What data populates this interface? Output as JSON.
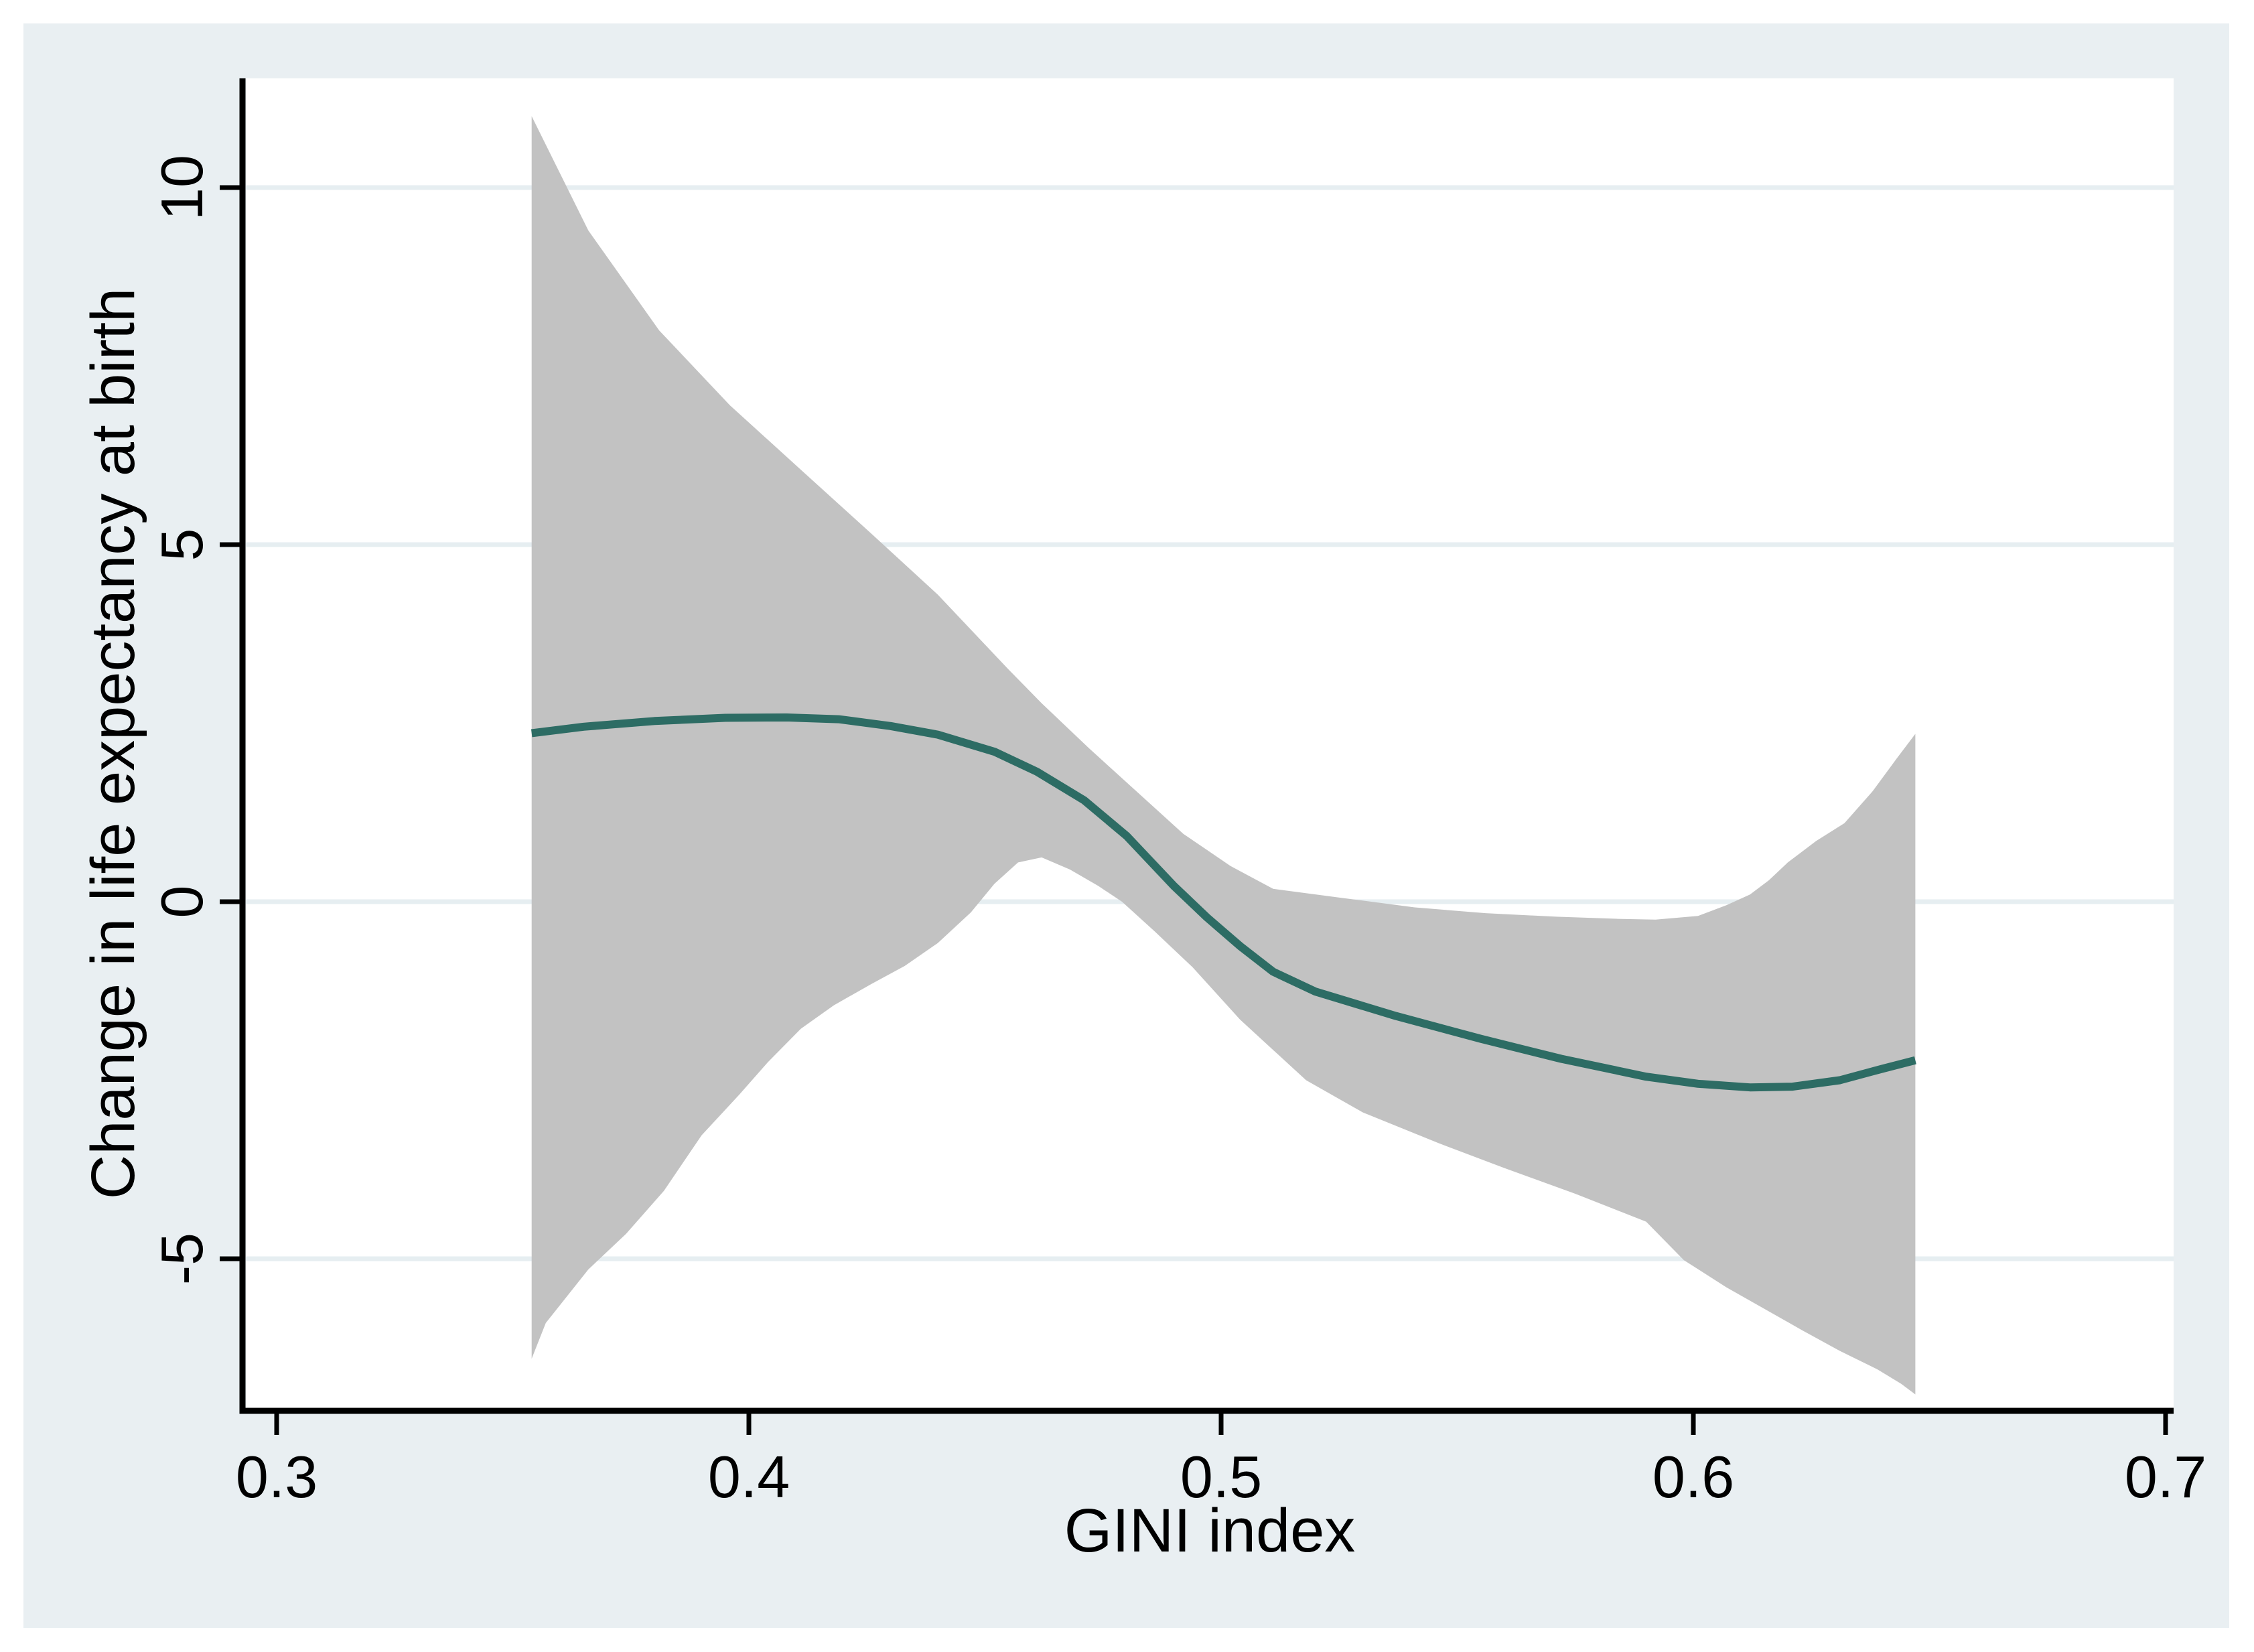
{
  "window": {
    "title": "Stata graph - lpoly smooth plot"
  },
  "colors": {
    "figure_background": "#e9eff2",
    "plot_background": "#ffffff",
    "gridline": "#e6eef1",
    "band_fill": "#c2c2c2",
    "line_stroke": "#2d6c64",
    "axis_stroke": "#000000",
    "text": "#000000"
  },
  "axes": {
    "x": {
      "title": "GINI index",
      "ticks": [
        0.3,
        0.4,
        0.5,
        0.6,
        0.7
      ],
      "tick_labels": [
        "0.3",
        "0.4",
        "0.5",
        "0.6",
        "0.7"
      ],
      "range": [
        0.2935,
        0.7017
      ]
    },
    "y": {
      "title": "Change in life expectancy at birth",
      "ticks": [
        10,
        5,
        0,
        -5
      ],
      "tick_labels": [
        "10",
        "5",
        "0",
        "-5"
      ],
      "range": [
        -7.1,
        11.5
      ],
      "tick_label_rotation_deg": -90
    }
  },
  "chart_data": {
    "type": "line",
    "title": "",
    "xlabel": "GINI index",
    "ylabel": "Change in life expectancy at birth",
    "xlim": [
      0.2935,
      0.7017
    ],
    "ylim": [
      -7.1,
      11.5
    ],
    "grid": "horizontal",
    "legend_position": "none",
    "series": [
      {
        "name": "smoothed-line",
        "role": "line",
        "points": [
          [
            0.354,
            2.36
          ],
          [
            0.365,
            2.45
          ],
          [
            0.38,
            2.53
          ],
          [
            0.395,
            2.575
          ],
          [
            0.408,
            2.58
          ],
          [
            0.419,
            2.555
          ],
          [
            0.43,
            2.46
          ],
          [
            0.44,
            2.34
          ],
          [
            0.452,
            2.1
          ],
          [
            0.461,
            1.82
          ],
          [
            0.471,
            1.42
          ],
          [
            0.48,
            0.92
          ],
          [
            0.49,
            0.22
          ],
          [
            0.497,
            -0.22
          ],
          [
            0.504,
            -0.62
          ],
          [
            0.511,
            -0.98
          ],
          [
            0.52,
            -1.26
          ],
          [
            0.537,
            -1.6
          ],
          [
            0.555,
            -1.92
          ],
          [
            0.572,
            -2.2
          ],
          [
            0.59,
            -2.45
          ],
          [
            0.601,
            -2.55
          ],
          [
            0.612,
            -2.6
          ],
          [
            0.621,
            -2.59
          ],
          [
            0.631,
            -2.5
          ],
          [
            0.64,
            -2.34
          ],
          [
            0.647,
            -2.22
          ]
        ]
      },
      {
        "name": "confidence-band-upper",
        "role": "band-upper",
        "points": [
          [
            0.354,
            11.0
          ],
          [
            0.366,
            9.4
          ],
          [
            0.381,
            8.0
          ],
          [
            0.396,
            6.95
          ],
          [
            0.411,
            6.05
          ],
          [
            0.426,
            5.15
          ],
          [
            0.44,
            4.3
          ],
          [
            0.455,
            3.25
          ],
          [
            0.462,
            2.78
          ],
          [
            0.472,
            2.15
          ],
          [
            0.482,
            1.55
          ],
          [
            0.492,
            0.95
          ],
          [
            0.502,
            0.5
          ],
          [
            0.511,
            0.18
          ],
          [
            0.526,
            0.05
          ],
          [
            0.541,
            -0.08
          ],
          [
            0.556,
            -0.16
          ],
          [
            0.571,
            -0.21
          ],
          [
            0.584,
            -0.24
          ],
          [
            0.592,
            -0.25
          ],
          [
            0.601,
            -0.2
          ],
          [
            0.607,
            -0.05
          ],
          [
            0.612,
            0.1
          ],
          [
            0.616,
            0.3
          ],
          [
            0.62,
            0.55
          ],
          [
            0.626,
            0.85
          ],
          [
            0.632,
            1.1
          ],
          [
            0.638,
            1.55
          ],
          [
            0.643,
            2.0
          ],
          [
            0.647,
            2.35
          ]
        ]
      },
      {
        "name": "confidence-band-lower",
        "role": "band-lower",
        "points": [
          [
            0.354,
            -6.4
          ],
          [
            0.357,
            -5.9
          ],
          [
            0.366,
            -5.15
          ],
          [
            0.374,
            -4.65
          ],
          [
            0.382,
            -4.05
          ],
          [
            0.39,
            -3.27
          ],
          [
            0.398,
            -2.7
          ],
          [
            0.404,
            -2.25
          ],
          [
            0.411,
            -1.78
          ],
          [
            0.418,
            -1.45
          ],
          [
            0.426,
            -1.15
          ],
          [
            0.433,
            -0.9
          ],
          [
            0.44,
            -0.58
          ],
          [
            0.447,
            -0.15
          ],
          [
            0.452,
            0.25
          ],
          [
            0.457,
            0.55
          ],
          [
            0.462,
            0.62
          ],
          [
            0.468,
            0.45
          ],
          [
            0.474,
            0.22
          ],
          [
            0.479,
            0.0
          ],
          [
            0.486,
            -0.42
          ],
          [
            0.494,
            -0.92
          ],
          [
            0.504,
            -1.65
          ],
          [
            0.518,
            -2.5
          ],
          [
            0.53,
            -2.95
          ],
          [
            0.546,
            -3.38
          ],
          [
            0.56,
            -3.73
          ],
          [
            0.575,
            -4.09
          ],
          [
            0.59,
            -4.48
          ],
          [
            0.598,
            -5.02
          ],
          [
            0.607,
            -5.4
          ],
          [
            0.615,
            -5.7
          ],
          [
            0.623,
            -6.0
          ],
          [
            0.631,
            -6.29
          ],
          [
            0.639,
            -6.55
          ],
          [
            0.644,
            -6.75
          ],
          [
            0.647,
            -6.9
          ]
        ]
      }
    ]
  }
}
